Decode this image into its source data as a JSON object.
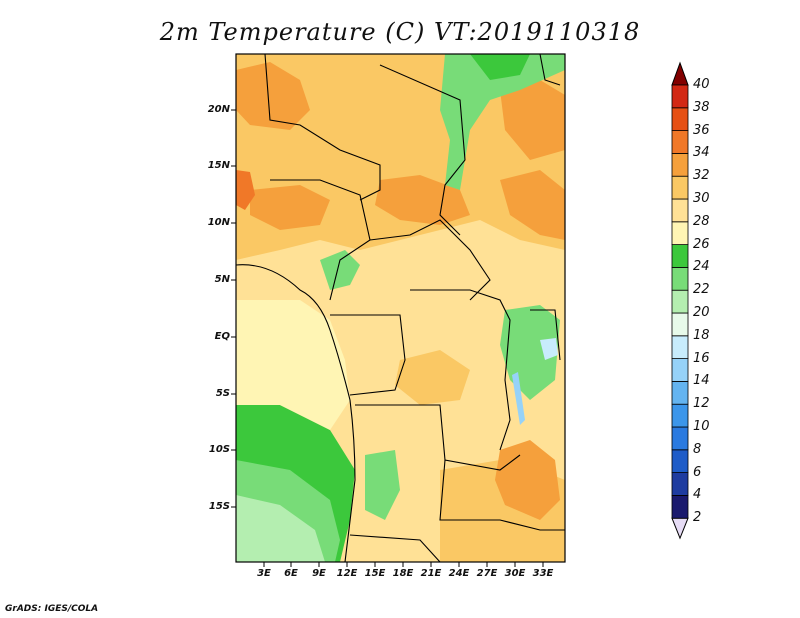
{
  "title": "2m Temperature (C) VT:2019110318",
  "credit": "GrADS: IGES/COLA",
  "map": {
    "lat_labels": [
      "20N",
      "15N",
      "10N",
      "5N",
      "EQ",
      "5S",
      "10S",
      "15S"
    ],
    "lon_labels": [
      "3E",
      "6E",
      "9E",
      "12E",
      "15E",
      "18E",
      "21E",
      "24E",
      "27E",
      "30E",
      "33E"
    ]
  },
  "colorbar": {
    "levels": [
      "2",
      "4",
      "6",
      "8",
      "10",
      "12",
      "14",
      "16",
      "18",
      "20",
      "22",
      "24",
      "26",
      "28",
      "30",
      "32",
      "34",
      "36",
      "38",
      "40"
    ],
    "colors": [
      "#e6dcf5",
      "#1a1a6e",
      "#1e3ca0",
      "#1e5cc8",
      "#2a7ae0",
      "#3c96ea",
      "#64b4f0",
      "#96d2f8",
      "#c8ecfc",
      "#e8faea",
      "#b4eeb0",
      "#78dc78",
      "#3cc83c",
      "#fff5b4",
      "#ffe196",
      "#fac864",
      "#f5a03c",
      "#f07828",
      "#e65014",
      "#d22814",
      "#b40a0a",
      "#820000"
    ]
  }
}
